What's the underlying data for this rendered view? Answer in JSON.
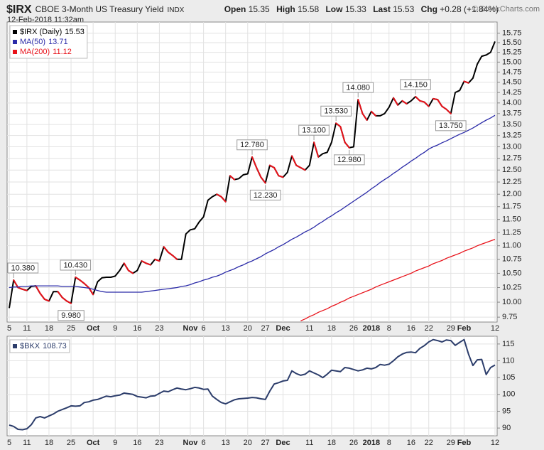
{
  "header": {
    "symbol": "$IRX",
    "name": "CBOE 3-Month US Treasury Yield",
    "exchange": "INDX",
    "timestamp": "12-Feb-2018 11:32am",
    "quote": [
      {
        "label": "Open",
        "value": 15.35
      },
      {
        "label": "High",
        "value": 15.58
      },
      {
        "label": "Low",
        "value": 15.33
      },
      {
        "label": "Last",
        "value": 15.53
      },
      {
        "label": "Chg",
        "value": "+0.28 (+1.84%)"
      }
    ],
    "copyright": "© StockCharts.com"
  },
  "chart_data": [
    {
      "type": "line",
      "log_scale": true,
      "grid": true,
      "legend": "top-left",
      "categories": [
        "5",
        null,
        null,
        null,
        "11",
        null,
        null,
        null,
        null,
        "18",
        null,
        null,
        null,
        null,
        "25",
        null,
        null,
        null,
        null,
        "Oct",
        null,
        null,
        null,
        null,
        "9",
        null,
        null,
        null,
        null,
        "16",
        null,
        null,
        null,
        null,
        "23",
        null,
        null,
        null,
        null,
        null,
        null,
        "Nov",
        null,
        null,
        "6",
        null,
        null,
        null,
        null,
        "13",
        null,
        null,
        null,
        null,
        "20",
        null,
        null,
        null,
        "27",
        null,
        null,
        null,
        "Dec",
        null,
        null,
        null,
        null,
        null,
        "11",
        null,
        null,
        null,
        null,
        "18",
        null,
        null,
        null,
        null,
        "26",
        null,
        null,
        null,
        "2018",
        null,
        null,
        null,
        "8",
        null,
        null,
        null,
        null,
        "16",
        null,
        null,
        null,
        "22",
        null,
        null,
        null,
        null,
        "29",
        null,
        null,
        "Feb",
        null,
        null,
        null,
        null,
        null,
        null,
        "12"
      ],
      "ylim": [
        9.67,
        16.05
      ],
      "yticks": [
        9.75,
        {
          "value": 10,
          "label": "10.00"
        },
        10.25,
        {
          "value": 10.5,
          "label": "10.50"
        },
        10.75,
        {
          "value": 11,
          "label": "11.00"
        },
        11.25,
        {
          "value": 11.5,
          "label": "11.50"
        },
        11.75,
        {
          "value": 12,
          "label": "12.00"
        },
        12.25,
        {
          "value": 12.5,
          "label": "12.50"
        },
        12.75,
        {
          "value": 13,
          "label": "13.00"
        },
        13.25,
        {
          "value": 13.5,
          "label": "13.50"
        },
        13.75,
        {
          "value": 14,
          "label": "14.00"
        },
        14.25,
        {
          "value": 14.5,
          "label": "14.50"
        },
        14.75,
        {
          "value": 15,
          "label": "15.00"
        },
        15.25,
        {
          "value": 15.5,
          "label": "15.50"
        },
        15.75
      ],
      "series": [
        {
          "name": "$IRX (Daily)",
          "legend_value": 15.53,
          "color": "#000000",
          "down_color": "#e8121a",
          "values": [
            9.9,
            10.38,
            10.25,
            10.22,
            10.2,
            10.27,
            10.28,
            10.15,
            10.05,
            10.02,
            10.18,
            10.18,
            10.08,
            10.02,
            9.98,
            10.43,
            10.38,
            10.32,
            10.25,
            10.13,
            10.35,
            10.42,
            10.43,
            10.43,
            10.45,
            10.55,
            10.68,
            10.55,
            10.5,
            10.55,
            10.72,
            10.68,
            10.65,
            10.75,
            10.72,
            10.98,
            10.88,
            10.82,
            10.75,
            10.75,
            11.22,
            11.3,
            11.32,
            11.45,
            11.55,
            11.88,
            11.95,
            12.0,
            11.95,
            11.85,
            12.38,
            12.3,
            12.32,
            12.4,
            12.42,
            12.78,
            12.55,
            12.35,
            12.23,
            12.6,
            12.55,
            12.38,
            12.35,
            12.45,
            12.8,
            12.6,
            12.55,
            12.5,
            12.6,
            13.1,
            12.78,
            12.85,
            12.88,
            13.1,
            13.53,
            13.45,
            13.1,
            12.98,
            13.0,
            14.08,
            13.75,
            13.6,
            13.8,
            13.7,
            13.7,
            13.75,
            13.9,
            14.12,
            13.95,
            14.05,
            13.98,
            14.05,
            14.15,
            14.05,
            14.02,
            13.92,
            14.1,
            14.08,
            13.92,
            13.85,
            13.75,
            14.25,
            14.3,
            14.52,
            14.48,
            14.6,
            14.95,
            15.15,
            15.18,
            15.25,
            15.53
          ],
          "value_labels": [
            null,
            "10.380",
            null,
            null,
            null,
            null,
            null,
            null,
            null,
            null,
            null,
            null,
            null,
            null,
            "9.980",
            "10.430",
            null,
            null,
            null,
            null,
            null,
            null,
            null,
            null,
            null,
            null,
            null,
            null,
            null,
            null,
            null,
            null,
            null,
            null,
            null,
            null,
            null,
            null,
            null,
            null,
            null,
            null,
            null,
            null,
            null,
            null,
            null,
            null,
            null,
            null,
            null,
            null,
            null,
            null,
            null,
            "12.780",
            null,
            null,
            "12.230",
            null,
            null,
            null,
            null,
            null,
            null,
            null,
            null,
            null,
            null,
            "13.100",
            null,
            null,
            null,
            null,
            "13.530",
            null,
            null,
            "12.980",
            null,
            "14.080",
            null,
            null,
            null,
            null,
            null,
            null,
            null,
            null,
            null,
            null,
            null,
            null,
            "14.150",
            null,
            null,
            null,
            null,
            null,
            null,
            null,
            "13.750",
            null,
            null,
            null,
            null,
            null,
            null,
            null,
            null,
            null,
            null
          ]
        },
        {
          "name": "MA(50)",
          "legend_value": 13.71,
          "color": "#2b2ba8",
          "values": [
            10.25,
            10.26,
            10.26,
            10.27,
            10.27,
            10.28,
            10.28,
            10.28,
            10.28,
            10.28,
            10.28,
            10.28,
            10.27,
            10.27,
            10.27,
            10.27,
            10.26,
            10.25,
            10.24,
            10.22,
            10.2,
            10.18,
            10.17,
            10.17,
            10.17,
            10.17,
            10.17,
            10.17,
            10.17,
            10.17,
            10.17,
            10.18,
            10.19,
            10.2,
            10.21,
            10.22,
            10.23,
            10.24,
            10.25,
            10.27,
            10.28,
            10.3,
            10.33,
            10.35,
            10.38,
            10.4,
            10.43,
            10.45,
            10.48,
            10.52,
            10.55,
            10.58,
            10.62,
            10.65,
            10.69,
            10.72,
            10.76,
            10.8,
            10.85,
            10.89,
            10.93,
            10.98,
            11.02,
            11.07,
            11.12,
            11.16,
            11.21,
            11.26,
            11.3,
            11.35,
            11.41,
            11.46,
            11.52,
            11.57,
            11.63,
            11.68,
            11.74,
            11.8,
            11.86,
            11.92,
            11.98,
            12.04,
            12.11,
            12.17,
            12.24,
            12.3,
            12.36,
            12.43,
            12.49,
            12.56,
            12.62,
            12.69,
            12.75,
            12.82,
            12.88,
            12.95,
            13.0,
            13.04,
            13.09,
            13.13,
            13.18,
            13.23,
            13.28,
            13.32,
            13.37,
            13.42,
            13.48,
            13.54,
            13.6,
            13.65,
            13.71
          ]
        },
        {
          "name": "MA(200)",
          "legend_value": 11.12,
          "color": "#e8121a",
          "values": [
            null,
            null,
            null,
            null,
            null,
            null,
            null,
            null,
            null,
            null,
            null,
            null,
            null,
            null,
            null,
            null,
            null,
            null,
            null,
            null,
            null,
            null,
            null,
            null,
            null,
            null,
            null,
            null,
            null,
            null,
            null,
            null,
            null,
            null,
            null,
            null,
            null,
            null,
            null,
            null,
            null,
            null,
            null,
            null,
            null,
            null,
            null,
            null,
            null,
            null,
            null,
            null,
            null,
            null,
            null,
            null,
            null,
            null,
            null,
            null,
            null,
            null,
            null,
            null,
            null,
            null,
            9.69,
            9.72,
            9.76,
            9.79,
            9.83,
            9.86,
            9.89,
            9.93,
            9.96,
            10.0,
            10.03,
            10.07,
            10.1,
            10.13,
            10.16,
            10.19,
            10.22,
            10.26,
            10.29,
            10.32,
            10.35,
            10.38,
            10.41,
            10.44,
            10.47,
            10.5,
            10.54,
            10.57,
            10.6,
            10.63,
            10.67,
            10.7,
            10.73,
            10.77,
            10.8,
            10.83,
            10.86,
            10.9,
            10.93,
            10.96,
            11.0,
            11.03,
            11.06,
            11.09,
            11.12
          ]
        }
      ]
    },
    {
      "type": "line",
      "grid": true,
      "legend": "top-left",
      "categories": [
        "5",
        null,
        null,
        null,
        "11",
        null,
        null,
        null,
        null,
        "18",
        null,
        null,
        null,
        null,
        "25",
        null,
        null,
        null,
        null,
        "Oct",
        null,
        null,
        null,
        null,
        "9",
        null,
        null,
        null,
        null,
        "16",
        null,
        null,
        null,
        null,
        "23",
        null,
        null,
        null,
        null,
        null,
        null,
        "Nov",
        null,
        null,
        "6",
        null,
        null,
        null,
        null,
        "13",
        null,
        null,
        null,
        null,
        "20",
        null,
        null,
        null,
        "27",
        null,
        null,
        null,
        "Dec",
        null,
        null,
        null,
        null,
        null,
        "11",
        null,
        null,
        null,
        null,
        "18",
        null,
        null,
        null,
        null,
        "26",
        null,
        null,
        null,
        "2018",
        null,
        null,
        null,
        "8",
        null,
        null,
        null,
        null,
        "16",
        null,
        null,
        null,
        "22",
        null,
        null,
        null,
        null,
        "29",
        null,
        null,
        "Feb",
        null,
        null,
        null,
        null,
        null,
        null,
        "12"
      ],
      "ylim": [
        87.7,
        117.3
      ],
      "yticks": [
        90,
        95,
        100,
        105,
        110,
        115
      ],
      "series": [
        {
          "name": "$BKX",
          "legend_value": 108.73,
          "color": "#2c3d6b",
          "values": [
            90.9,
            90.5,
            89.6,
            89.5,
            89.8,
            91.0,
            93.0,
            93.4,
            93.0,
            93.6,
            94.2,
            95.0,
            95.5,
            96.0,
            96.6,
            96.5,
            96.6,
            97.6,
            97.8,
            98.3,
            98.5,
            99.0,
            99.5,
            99.3,
            99.6,
            99.8,
            100.4,
            100.2,
            100.0,
            99.4,
            99.2,
            99.0,
            99.5,
            99.6,
            100.3,
            101.0,
            100.8,
            101.4,
            101.9,
            101.6,
            101.4,
            101.7,
            102.1,
            101.9,
            101.5,
            101.6,
            99.5,
            98.5,
            97.6,
            97.2,
            97.8,
            98.4,
            98.7,
            98.8,
            98.9,
            99.1,
            99.0,
            98.7,
            98.5,
            101.0,
            103.1,
            103.5,
            104.0,
            104.2,
            107.0,
            106.2,
            105.7,
            106.0,
            107.0,
            106.4,
            105.8,
            105.0,
            106.0,
            107.2,
            107.0,
            106.8,
            108.0,
            107.8,
            107.4,
            107.0,
            107.3,
            107.8,
            107.6,
            108.0,
            108.9,
            108.7,
            109.0,
            110.0,
            111.2,
            112.0,
            112.5,
            112.6,
            112.4,
            113.7,
            114.5,
            115.6,
            116.3,
            116.0,
            115.6,
            116.2,
            116.0,
            114.6,
            115.5,
            116.3,
            112.0,
            108.6,
            110.3,
            110.4,
            105.9,
            108.0,
            108.73
          ]
        }
      ]
    }
  ]
}
